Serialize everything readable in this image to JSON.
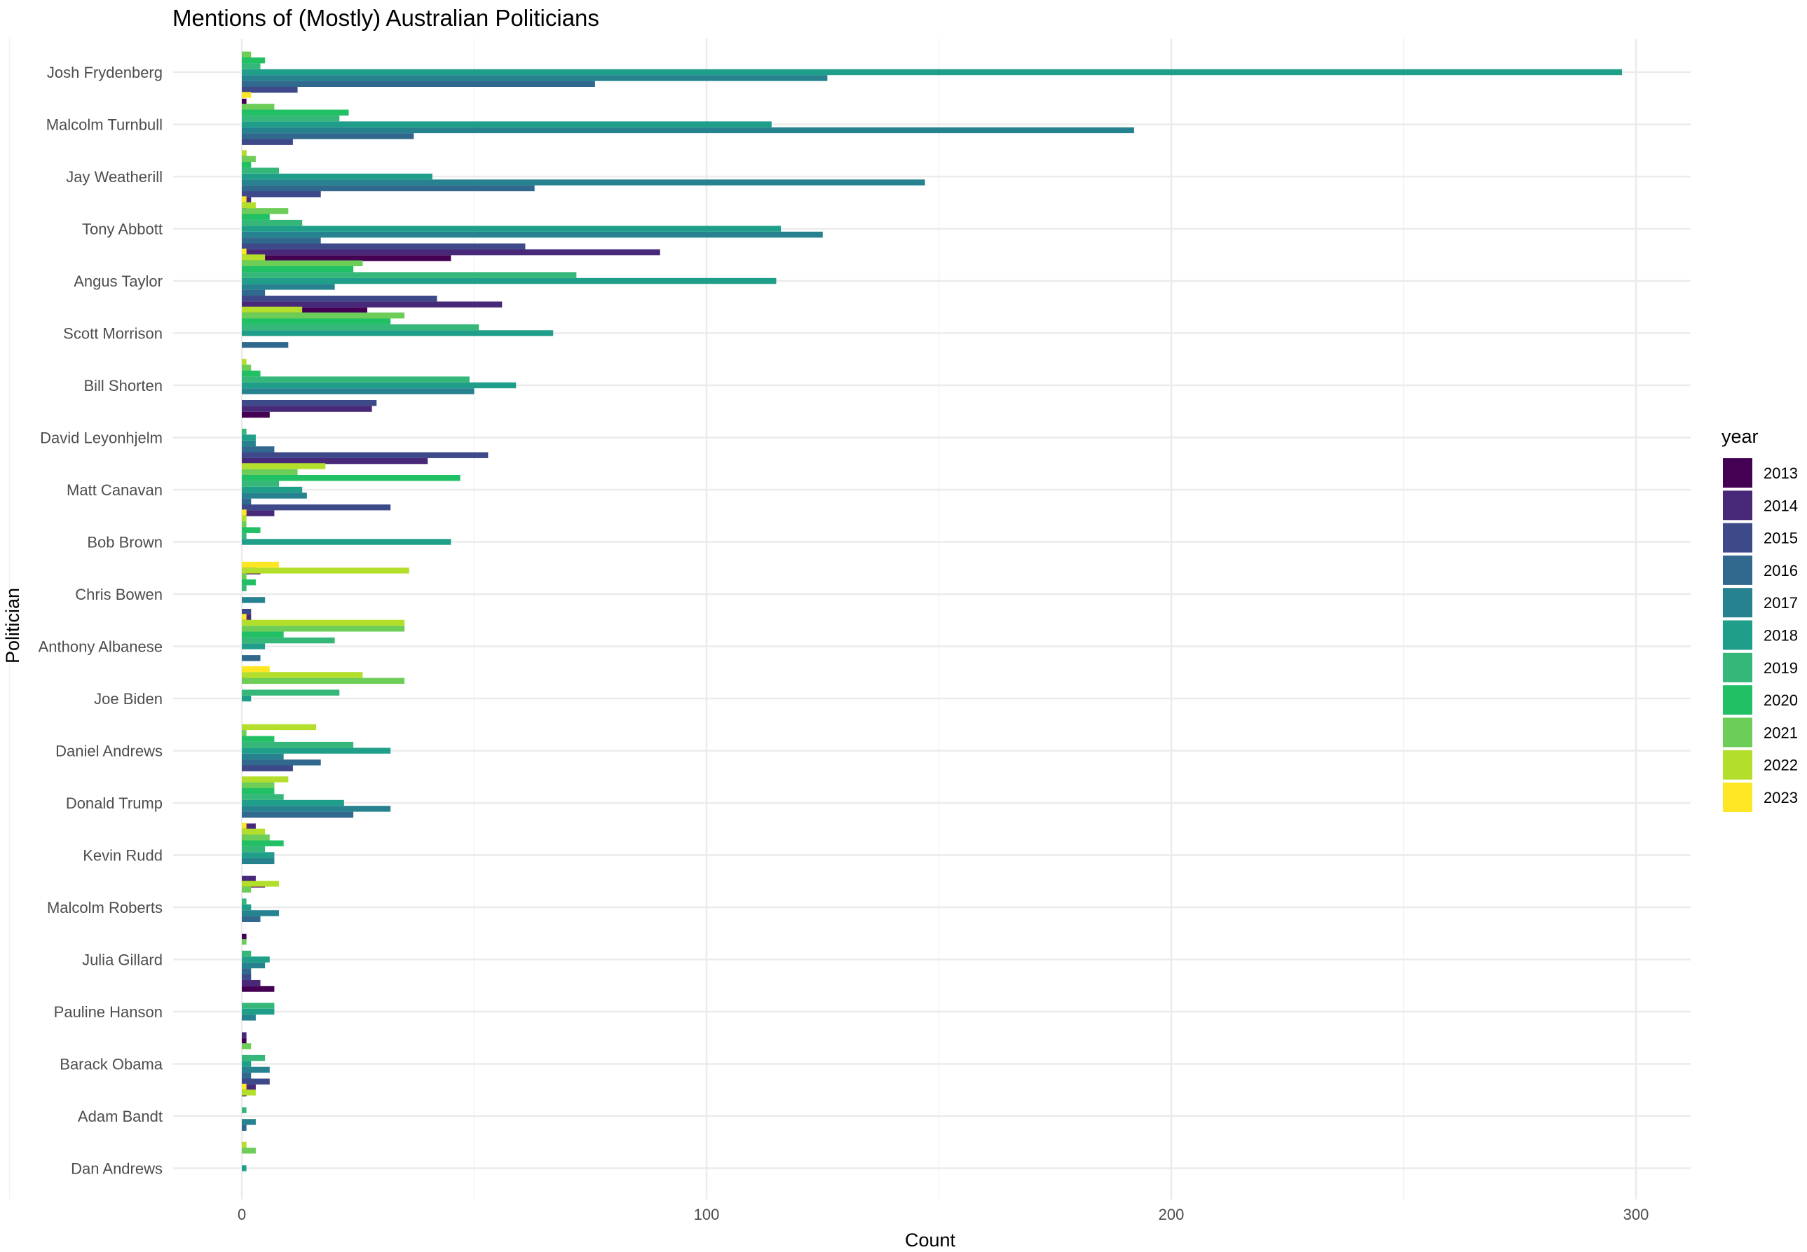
{
  "chart_data": {
    "type": "bar",
    "orientation": "horizontal",
    "title": "Mentions of (Mostly) Australian Politicians",
    "xlabel": "Count",
    "ylabel": "Politician",
    "xlim": [
      0,
      310
    ],
    "xticks": [
      0,
      100,
      200,
      300
    ],
    "grid": true,
    "legend": {
      "title": "year",
      "placement": "right"
    },
    "categories": [
      "Josh Frydenberg",
      "Malcolm Turnbull",
      "Jay Weatherill",
      "Tony Abbott",
      "Angus Taylor",
      "Scott Morrison",
      "Bill Shorten",
      "David Leyonhjelm",
      "Matt Canavan",
      "Bob Brown",
      "Chris Bowen",
      "Anthony Albanese",
      "Joe Biden",
      "Daniel Andrews",
      "Donald Trump",
      "Kevin Rudd",
      "Malcolm Roberts",
      "Julia Gillard",
      "Pauline Hanson",
      "Barack Obama",
      "Adam Bandt",
      "Dan Andrews"
    ],
    "series": [
      {
        "name": "2013",
        "color": "#440154",
        "values": [
          1,
          1,
          1,
          45,
          27,
          0,
          6,
          0,
          0,
          4,
          0,
          1,
          0,
          0,
          1,
          5,
          1,
          7,
          1,
          1,
          0,
          0
        ]
      },
      {
        "name": "2014",
        "color": "#482878",
        "values": [
          0,
          0,
          2,
          90,
          56,
          0,
          28,
          40,
          7,
          3,
          2,
          0,
          0,
          0,
          3,
          3,
          0,
          4,
          1,
          3,
          0,
          0
        ]
      },
      {
        "name": "2015",
        "color": "#3E4989",
        "values": [
          12,
          11,
          17,
          61,
          42,
          0,
          29,
          53,
          32,
          0,
          2,
          0,
          0,
          11,
          0,
          0,
          0,
          2,
          0,
          6,
          0,
          0
        ]
      },
      {
        "name": "2016",
        "color": "#31688E",
        "values": [
          76,
          37,
          63,
          17,
          5,
          10,
          0,
          7,
          2,
          0,
          0,
          4,
          0,
          17,
          24,
          0,
          4,
          2,
          0,
          2,
          1,
          0
        ]
      },
      {
        "name": "2017",
        "color": "#26828E",
        "values": [
          126,
          192,
          147,
          125,
          20,
          0,
          50,
          3,
          14,
          0,
          5,
          0,
          0,
          9,
          32,
          7,
          8,
          5,
          3,
          6,
          3,
          0
        ]
      },
      {
        "name": "2018",
        "color": "#1F9E89",
        "values": [
          297,
          114,
          41,
          116,
          115,
          67,
          59,
          3,
          13,
          45,
          0,
          5,
          2,
          32,
          22,
          7,
          2,
          6,
          7,
          2,
          0,
          1
        ]
      },
      {
        "name": "2019",
        "color": "#35B779",
        "values": [
          4,
          21,
          8,
          13,
          72,
          51,
          49,
          1,
          8,
          1,
          1,
          20,
          21,
          24,
          9,
          5,
          1,
          2,
          7,
          5,
          1,
          0
        ]
      },
      {
        "name": "2020",
        "color": "#21C065",
        "values": [
          5,
          23,
          2,
          6,
          24,
          32,
          4,
          0,
          47,
          4,
          3,
          9,
          0,
          7,
          7,
          9,
          0,
          0,
          0,
          0,
          0,
          0
        ]
      },
      {
        "name": "2021",
        "color": "#6DCD59",
        "values": [
          2,
          7,
          3,
          10,
          26,
          35,
          2,
          0,
          12,
          1,
          1,
          35,
          35,
          1,
          7,
          6,
          2,
          1,
          0,
          2,
          0,
          3
        ]
      },
      {
        "name": "2022",
        "color": "#B4DE2C",
        "values": [
          0,
          0,
          1,
          3,
          5,
          13,
          1,
          0,
          18,
          1,
          36,
          35,
          26,
          16,
          10,
          5,
          8,
          0,
          0,
          0,
          3,
          1
        ]
      },
      {
        "name": "2023",
        "color": "#FDE725",
        "values": [
          0,
          2,
          0,
          1,
          1,
          0,
          0,
          0,
          0,
          1,
          8,
          1,
          6,
          0,
          0,
          1,
          0,
          0,
          0,
          0,
          1,
          0
        ]
      }
    ]
  }
}
